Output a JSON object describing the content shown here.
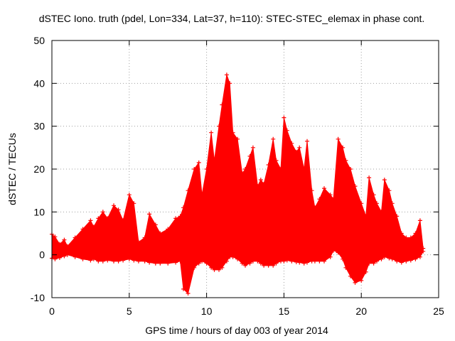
{
  "chart_data": {
    "type": "area",
    "title": "dSTEC Iono. truth (pdel, Lon=334, Lat=37, h=110): STEC-STEC_elemax in phase cont.",
    "xlabel": "GPS time / hours of day 003 of year 2014",
    "ylabel": "dSTEC  / TECUs",
    "xlim": [
      0,
      25
    ],
    "ylim": [
      -10,
      50
    ],
    "x_ticks": [
      0,
      5,
      10,
      15,
      20,
      25
    ],
    "y_ticks": [
      -10,
      0,
      10,
      20,
      30,
      40,
      50
    ],
    "grid": true,
    "series_color": "#ff0000",
    "series": [
      {
        "x": [
          0,
          0.2,
          0.5,
          0.8,
          1.0,
          1.5,
          2.0,
          2.5,
          2.7,
          3.0,
          3.3,
          3.6,
          4.0,
          4.3,
          4.6,
          5.0,
          5.3,
          5.6,
          6.0,
          6.3,
          6.7,
          7.0,
          7.5,
          8.0,
          8.3,
          8.5,
          8.8,
          9.2,
          9.5,
          9.7,
          10.0,
          10.3,
          10.5,
          10.8,
          11.0,
          11.3,
          11.5,
          11.7,
          12.0,
          12.3,
          12.5,
          12.8,
          13.0,
          13.3,
          13.5,
          13.7,
          14.0,
          14.3,
          14.5,
          14.8,
          15.0,
          15.2,
          15.5,
          15.8,
          16.0,
          16.3,
          16.5,
          16.8,
          17.0,
          17.3,
          17.6,
          18.0,
          18.2,
          18.5,
          18.8,
          19.0,
          19.3,
          19.6,
          20.0,
          20.3,
          20.5,
          20.8,
          21.0,
          21.3,
          21.5,
          21.8,
          22.0,
          22.3,
          22.6,
          22.9,
          23.2,
          23.5,
          23.8,
          24.0
        ],
        "upper": [
          4.8,
          4.2,
          2.5,
          3.5,
          2.0,
          4.0,
          6.0,
          8.0,
          6.5,
          8.5,
          10.0,
          8.5,
          11.5,
          10.5,
          8.0,
          14.0,
          12.0,
          3.0,
          4.0,
          9.5,
          7.0,
          5.0,
          6.0,
          8.5,
          9.0,
          11.0,
          15.0,
          20.0,
          21.5,
          14.0,
          20.0,
          28.5,
          22.0,
          30.0,
          35.0,
          42.0,
          40.0,
          28.5,
          27.0,
          19.0,
          20.0,
          23.0,
          25.0,
          16.0,
          17.5,
          16.5,
          21.0,
          27.0,
          22.0,
          20.0,
          32.0,
          29.0,
          26.0,
          24.0,
          25.0,
          20.0,
          26.5,
          15.0,
          11.0,
          13.0,
          15.5,
          14.0,
          13.0,
          27.0,
          25.0,
          22.0,
          20.0,
          16.0,
          12.0,
          9.0,
          18.0,
          14.0,
          12.0,
          10.0,
          17.5,
          15.0,
          12.0,
          9.0,
          5.0,
          4.0,
          4.0,
          5.0,
          8.0,
          1.5
        ],
        "lower": [
          -0.8,
          -1.0,
          -0.7,
          -0.3,
          0.0,
          -0.5,
          -1.0,
          -1.3,
          -1.0,
          -1.5,
          -1.5,
          -1.3,
          -1.5,
          -1.5,
          -1.3,
          -1.0,
          -1.3,
          -1.5,
          -1.5,
          -1.8,
          -2.0,
          -2.0,
          -2.0,
          -1.8,
          -1.5,
          -8.0,
          -9.0,
          -3.0,
          -2.0,
          -1.5,
          -2.0,
          -3.0,
          -3.5,
          -3.5,
          -3.0,
          -1.5,
          -0.5,
          -0.5,
          -1.0,
          -2.0,
          -2.5,
          -2.0,
          -1.5,
          -1.5,
          -2.0,
          -2.5,
          -2.5,
          -2.5,
          -2.0,
          -1.5,
          -1.5,
          -1.3,
          -1.5,
          -1.7,
          -1.8,
          -2.0,
          -1.8,
          -1.5,
          -1.5,
          -1.5,
          -1.5,
          -0.5,
          1.0,
          0.5,
          -1.0,
          -3.0,
          -5.0,
          -6.5,
          -6.0,
          -4.0,
          -2.0,
          -2.0,
          -1.5,
          -1.0,
          -0.5,
          -0.8,
          -1.0,
          -1.5,
          -1.8,
          -1.5,
          -1.3,
          -1.0,
          -0.5,
          0.8
        ]
      }
    ]
  }
}
